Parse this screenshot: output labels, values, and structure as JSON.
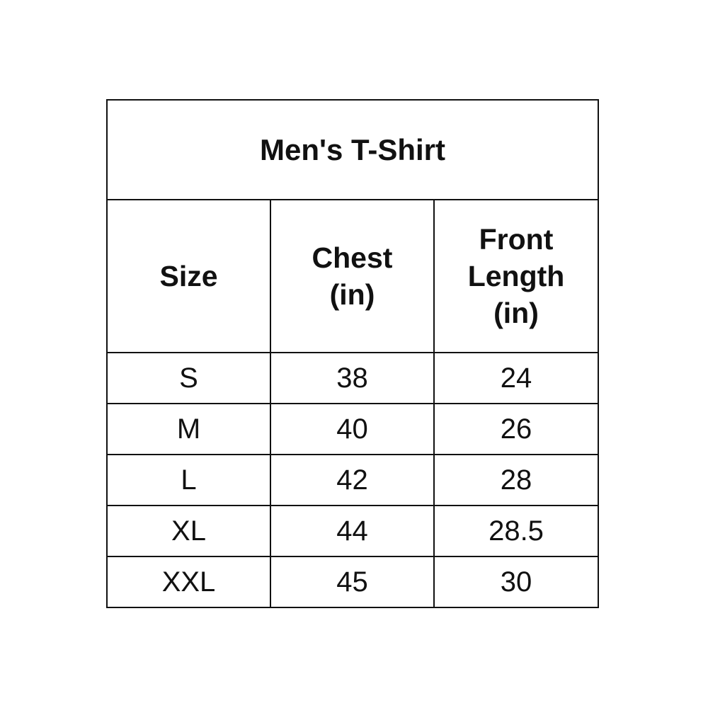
{
  "title": "Men's T-Shirt",
  "columns": [
    "Size",
    "Chest (in)",
    "Front Length (in)"
  ],
  "header_lines": {
    "size": [
      "Size"
    ],
    "chest": [
      "Chest",
      "(in)"
    ],
    "front_length": [
      "Front",
      "Length",
      "(in)"
    ]
  },
  "rows": [
    [
      "S",
      "38",
      "24"
    ],
    [
      "M",
      "40",
      "26"
    ],
    [
      "L",
      "42",
      "28"
    ],
    [
      "XL",
      "44",
      "28.5"
    ],
    [
      "XXL",
      "45",
      "30"
    ]
  ]
}
